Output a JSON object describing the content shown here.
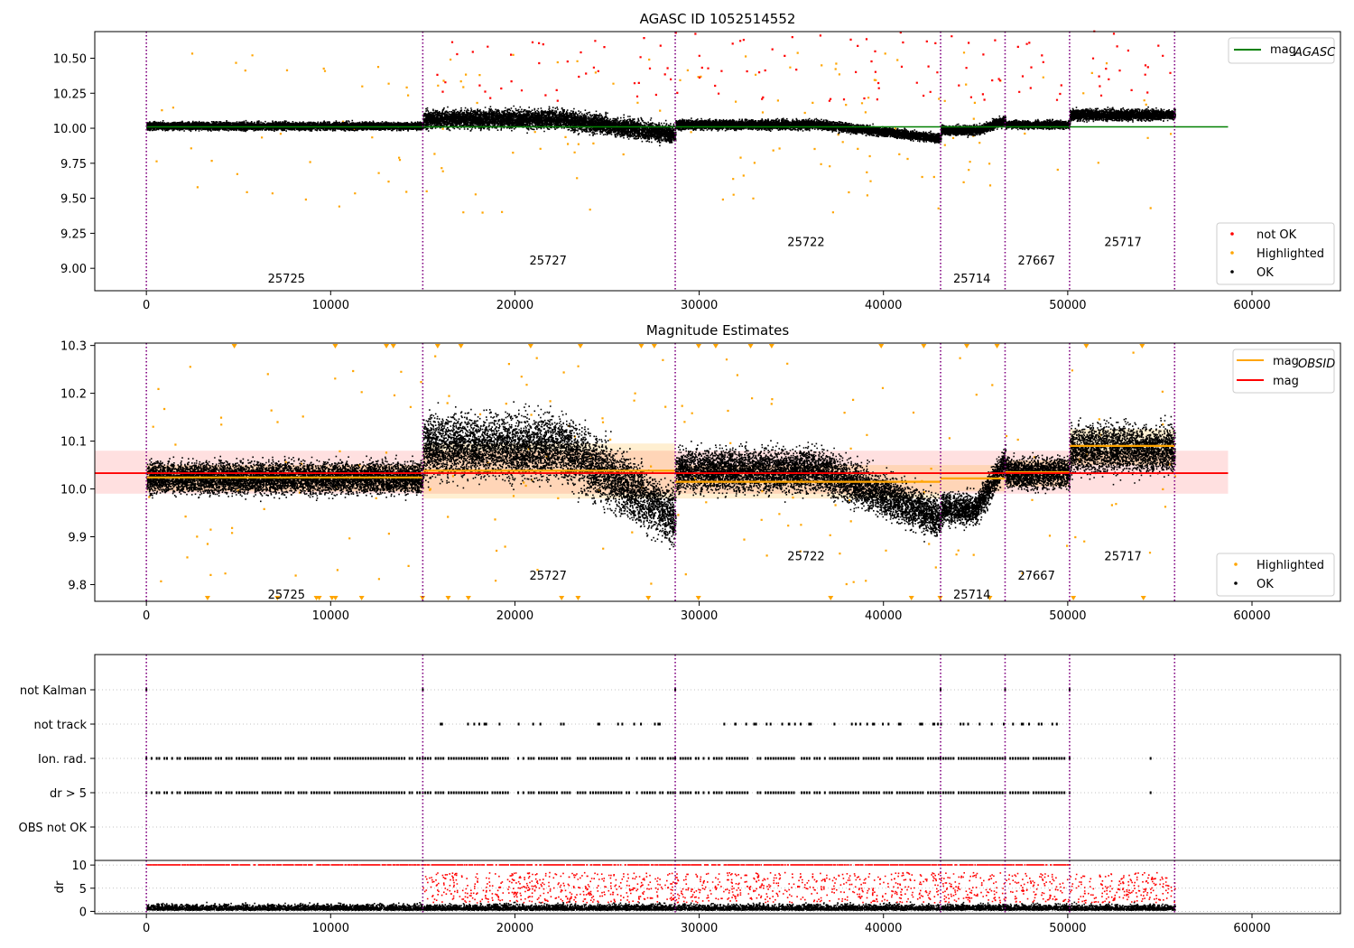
{
  "chart_data": [
    {
      "type": "scatter",
      "title": "AGASC ID 1052514552",
      "xlim": [
        -2800,
        64800
      ],
      "ylim": [
        8.84,
        10.69
      ],
      "xticks": [
        0,
        10000,
        20000,
        30000,
        40000,
        50000,
        60000
      ],
      "yticks": [
        9.0,
        9.25,
        9.5,
        9.75,
        10.0,
        10.25,
        10.5
      ],
      "ytick_labels": [
        "9.00",
        "9.25",
        "9.50",
        "9.75",
        "10.00",
        "10.25",
        "10.50"
      ],
      "boundaries": [
        0,
        15000,
        28700,
        43100,
        46600,
        50100,
        55800
      ],
      "obsids": [
        {
          "label": "25725",
          "x": 7600,
          "y": 8.93
        },
        {
          "label": "25727",
          "x": 21800,
          "y": 9.06
        },
        {
          "label": "25722",
          "x": 35800,
          "y": 9.19
        },
        {
          "label": "25714",
          "x": 44800,
          "y": 8.93
        },
        {
          "label": "27667",
          "x": 48300,
          "y": 9.06
        },
        {
          "label": "25717",
          "x": 53000,
          "y": 9.19
        }
      ],
      "segments": [
        {
          "x0": 0,
          "x1": 15000,
          "level": 10.02,
          "spread": 0.025
        },
        {
          "x0": 15000,
          "x1": 28700,
          "level": 10.07,
          "spread": 0.06,
          "trend_to": 9.96
        },
        {
          "x0": 28700,
          "x1": 43100,
          "level": 10.03,
          "spread": 0.03,
          "trend_to": 9.93
        },
        {
          "x0": 43100,
          "x1": 46600,
          "level": 9.99,
          "spread": 0.03,
          "trend_to": 10.06
        },
        {
          "x0": 46600,
          "x1": 50100,
          "level": 10.03,
          "spread": 0.025
        },
        {
          "x0": 50100,
          "x1": 55800,
          "level": 10.1,
          "spread": 0.035
        }
      ],
      "lines": [
        {
          "name": "mag_AGASC",
          "y": 10.01,
          "x0": 0,
          "x1": 58700,
          "color": "#008000"
        }
      ],
      "series": [
        {
          "name": "not OK",
          "color": "#ff0000"
        },
        {
          "name": "Highlighted",
          "color": "#ffa500"
        },
        {
          "name": "OK",
          "color": "#000000"
        }
      ],
      "legend_upper": [
        {
          "label": "mag",
          "sub": "AGASC",
          "color": "#008000"
        }
      ],
      "legend_lower": [
        {
          "label": "not OK",
          "color": "#ff0000"
        },
        {
          "label": "Highlighted",
          "color": "#ffa500"
        },
        {
          "label": "OK",
          "color": "#000000"
        }
      ]
    },
    {
      "type": "scatter",
      "title": "Magnitude Estimates",
      "xlim": [
        -2800,
        64800
      ],
      "ylim": [
        9.765,
        10.305
      ],
      "xticks": [
        0,
        10000,
        20000,
        30000,
        40000,
        50000,
        60000
      ],
      "yticks": [
        9.8,
        9.9,
        10.0,
        10.1,
        10.2,
        10.3
      ],
      "ytick_labels": [
        "9.8",
        "9.9",
        "10.0",
        "10.1",
        "10.2",
        "10.3"
      ],
      "boundaries": [
        0,
        15000,
        28700,
        43100,
        46600,
        50100,
        55800
      ],
      "obsids": [
        {
          "label": "25725",
          "x": 7600,
          "y": 9.78
        },
        {
          "label": "25727",
          "x": 21800,
          "y": 9.82
        },
        {
          "label": "25722",
          "x": 35800,
          "y": 9.86
        },
        {
          "label": "25714",
          "x": 44800,
          "y": 9.78
        },
        {
          "label": "27667",
          "x": 48300,
          "y": 9.82
        },
        {
          "label": "25717",
          "x": 53000,
          "y": 9.86
        }
      ],
      "mag": {
        "value": 10.033,
        "band": [
          9.99,
          10.08
        ],
        "x0": -2800,
        "x1": 58700
      },
      "mag_obsid": [
        {
          "x0": 0,
          "x1": 15000,
          "value": 10.024,
          "band": [
            9.995,
            10.05
          ]
        },
        {
          "x0": 15000,
          "x1": 28700,
          "value": 10.038,
          "band": [
            9.98,
            10.095
          ]
        },
        {
          "x0": 28700,
          "x1": 43100,
          "value": 10.015,
          "band": [
            9.98,
            10.05
          ]
        },
        {
          "x0": 43100,
          "x1": 46600,
          "value": 10.022,
          "band": [
            9.995,
            10.05
          ]
        },
        {
          "x0": 46600,
          "x1": 50100,
          "value": 10.035,
          "band": [
            10.005,
            10.06
          ]
        },
        {
          "x0": 50100,
          "x1": 55800,
          "value": 10.09,
          "band": [
            10.05,
            10.125
          ]
        }
      ],
      "segments": [
        {
          "x0": 0,
          "x1": 15000,
          "level": 10.025,
          "spread": 0.03
        },
        {
          "x0": 15000,
          "x1": 28700,
          "level": 10.09,
          "spread": 0.06,
          "trend_to": 9.94
        },
        {
          "x0": 28700,
          "x1": 43100,
          "level": 10.04,
          "spread": 0.04,
          "trend_to": 9.94
        },
        {
          "x0": 43100,
          "x1": 46600,
          "level": 9.96,
          "spread": 0.03,
          "trend_to": 10.06
        },
        {
          "x0": 46600,
          "x1": 50100,
          "level": 10.035,
          "spread": 0.03
        },
        {
          "x0": 50100,
          "x1": 55800,
          "level": 10.085,
          "spread": 0.045
        }
      ],
      "series": [
        {
          "name": "Highlighted",
          "color": "#ffa500"
        },
        {
          "name": "OK",
          "color": "#000000"
        }
      ],
      "legend_upper": [
        {
          "label": "mag",
          "sub": "OBSID",
          "color": "#ffa500"
        },
        {
          "label": "mag",
          "sub": "",
          "color": "#ff0000"
        }
      ],
      "legend_lower": [
        {
          "label": "Highlighted",
          "color": "#ffa500"
        },
        {
          "label": "OK",
          "color": "#000000"
        }
      ]
    },
    {
      "type": "scatter",
      "title": "",
      "xlim": [
        -2800,
        64800
      ],
      "boundaries": [
        0,
        15000,
        28700,
        43100,
        46600,
        50100,
        55800
      ],
      "flag_rows": [
        "not Kalman",
        "not track",
        "Ion. rad.",
        "dr > 5",
        "OBS not OK"
      ],
      "grid": true
    },
    {
      "type": "scatter",
      "title": "",
      "xlim": [
        -2800,
        64800
      ],
      "ylim": [
        -0.5,
        11.0
      ],
      "ylabel": "dr",
      "xticks": [
        0,
        10000,
        20000,
        30000,
        40000,
        50000,
        60000
      ],
      "yticks": [
        0,
        5,
        10
      ],
      "ytick_labels": [
        "0",
        "5",
        "10"
      ],
      "boundaries": [
        0,
        15000,
        28700,
        43100,
        46600,
        50100,
        55800
      ],
      "series": [
        {
          "name": "OK",
          "color": "#000000"
        },
        {
          "name": "not OK",
          "color": "#ff0000"
        }
      ]
    }
  ]
}
